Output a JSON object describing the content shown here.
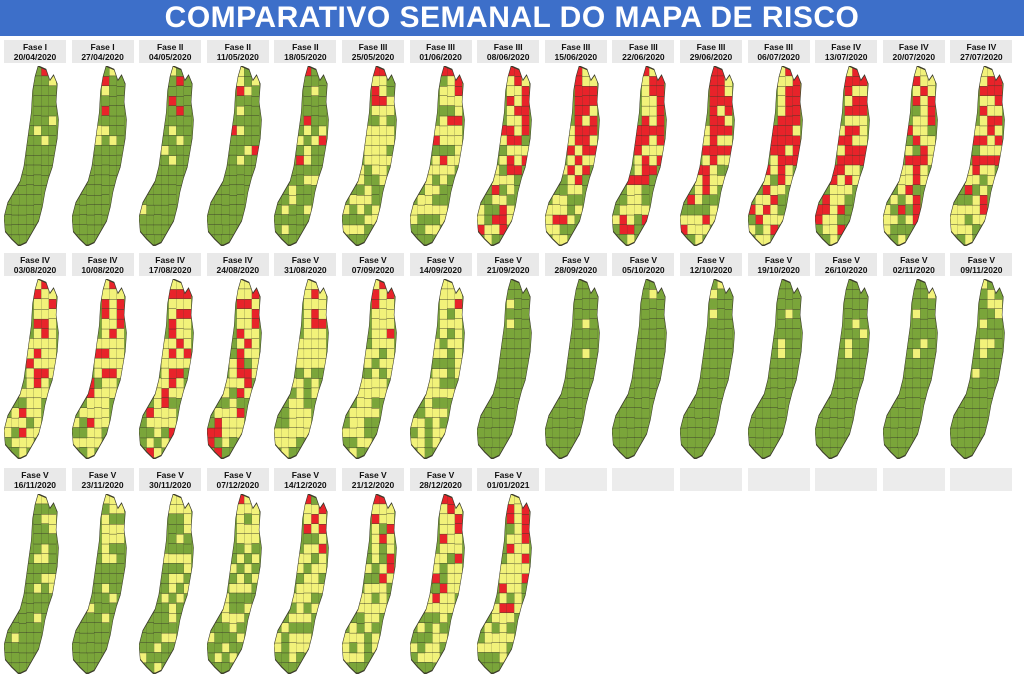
{
  "title": "COMPARATIVO SEMANAL DO MAPA DE RISCO",
  "colors": {
    "baixo": "#7aa53a",
    "moderado": "#f2f27a",
    "alto": "#e8232a",
    "border": "#3a3a2a",
    "header": "#3d6fc9"
  },
  "weeks": [
    {
      "phase": "Fase I",
      "date": "20/04/2020",
      "risk": {
        "baixo": 0.92,
        "moderado": 0.06,
        "alto": 0.02
      }
    },
    {
      "phase": "Fase I",
      "date": "27/04/2020",
      "risk": {
        "baixo": 0.88,
        "moderado": 0.09,
        "alto": 0.03
      }
    },
    {
      "phase": "Fase II",
      "date": "04/05/2020",
      "risk": {
        "baixo": 0.86,
        "moderado": 0.1,
        "alto": 0.04
      }
    },
    {
      "phase": "Fase II",
      "date": "11/05/2020",
      "risk": {
        "baixo": 0.82,
        "moderado": 0.13,
        "alto": 0.05
      }
    },
    {
      "phase": "Fase II",
      "date": "18/05/2020",
      "risk": {
        "baixo": 0.72,
        "moderado": 0.22,
        "alto": 0.06
      }
    },
    {
      "phase": "Fase III",
      "date": "25/05/2020",
      "risk": {
        "baixo": 0.3,
        "moderado": 0.62,
        "alto": 0.08
      }
    },
    {
      "phase": "Fase III",
      "date": "01/06/2020",
      "risk": {
        "baixo": 0.28,
        "moderado": 0.6,
        "alto": 0.12
      }
    },
    {
      "phase": "Fase III",
      "date": "08/06/2020",
      "risk": {
        "baixo": 0.18,
        "moderado": 0.45,
        "alto": 0.37
      }
    },
    {
      "phase": "Fase III",
      "date": "15/06/2020",
      "risk": {
        "baixo": 0.15,
        "moderado": 0.45,
        "alto": 0.4
      }
    },
    {
      "phase": "Fase III",
      "date": "22/06/2020",
      "risk": {
        "baixo": 0.16,
        "moderado": 0.4,
        "alto": 0.44
      }
    },
    {
      "phase": "Fase III",
      "date": "29/06/2020",
      "risk": {
        "baixo": 0.12,
        "moderado": 0.42,
        "alto": 0.46
      }
    },
    {
      "phase": "Fase III",
      "date": "06/07/2020",
      "risk": {
        "baixo": 0.08,
        "moderado": 0.4,
        "alto": 0.52
      }
    },
    {
      "phase": "Fase IV",
      "date": "13/07/2020",
      "risk": {
        "baixo": 0.1,
        "moderado": 0.42,
        "alto": 0.48
      }
    },
    {
      "phase": "Fase IV",
      "date": "20/07/2020",
      "risk": {
        "baixo": 0.2,
        "moderado": 0.5,
        "alto": 0.3
      }
    },
    {
      "phase": "Fase IV",
      "date": "27/07/2020",
      "risk": {
        "baixo": 0.12,
        "moderado": 0.55,
        "alto": 0.33
      }
    },
    {
      "phase": "Fase IV",
      "date": "03/08/2020",
      "risk": {
        "baixo": 0.1,
        "moderado": 0.7,
        "alto": 0.2
      }
    },
    {
      "phase": "Fase IV",
      "date": "10/08/2020",
      "risk": {
        "baixo": 0.1,
        "moderado": 0.68,
        "alto": 0.22
      }
    },
    {
      "phase": "Fase IV",
      "date": "17/08/2020",
      "risk": {
        "baixo": 0.12,
        "moderado": 0.6,
        "alto": 0.28
      }
    },
    {
      "phase": "Fase IV",
      "date": "24/08/2020",
      "risk": {
        "baixo": 0.15,
        "moderado": 0.55,
        "alto": 0.3
      }
    },
    {
      "phase": "Fase V",
      "date": "31/08/2020",
      "risk": {
        "baixo": 0.18,
        "moderado": 0.75,
        "alto": 0.07
      }
    },
    {
      "phase": "Fase V",
      "date": "07/09/2020",
      "risk": {
        "baixo": 0.22,
        "moderado": 0.7,
        "alto": 0.08
      }
    },
    {
      "phase": "Fase V",
      "date": "14/09/2020",
      "risk": {
        "baixo": 0.3,
        "moderado": 0.68,
        "alto": 0.02
      }
    },
    {
      "phase": "Fase V",
      "date": "21/09/2020",
      "risk": {
        "baixo": 0.97,
        "moderado": 0.03,
        "alto": 0.0
      }
    },
    {
      "phase": "Fase V",
      "date": "28/09/2020",
      "risk": {
        "baixo": 0.97,
        "moderado": 0.03,
        "alto": 0.0
      }
    },
    {
      "phase": "Fase V",
      "date": "05/10/2020",
      "risk": {
        "baixo": 0.98,
        "moderado": 0.02,
        "alto": 0.0
      }
    },
    {
      "phase": "Fase V",
      "date": "12/10/2020",
      "risk": {
        "baixo": 0.95,
        "moderado": 0.05,
        "alto": 0.0
      }
    },
    {
      "phase": "Fase V",
      "date": "19/10/2020",
      "risk": {
        "baixo": 0.96,
        "moderado": 0.04,
        "alto": 0.0
      }
    },
    {
      "phase": "Fase V",
      "date": "26/10/2020",
      "risk": {
        "baixo": 0.94,
        "moderado": 0.06,
        "alto": 0.0
      }
    },
    {
      "phase": "Fase V",
      "date": "02/11/2020",
      "risk": {
        "baixo": 0.93,
        "moderado": 0.07,
        "alto": 0.0
      }
    },
    {
      "phase": "Fase V",
      "date": "09/11/2020",
      "risk": {
        "baixo": 0.85,
        "moderado": 0.15,
        "alto": 0.0
      }
    },
    {
      "phase": "Fase V",
      "date": "16/11/2020",
      "risk": {
        "baixo": 0.78,
        "moderado": 0.22,
        "alto": 0.0
      }
    },
    {
      "phase": "Fase V",
      "date": "23/11/2020",
      "risk": {
        "baixo": 0.72,
        "moderado": 0.28,
        "alto": 0.0
      }
    },
    {
      "phase": "Fase V",
      "date": "30/11/2020",
      "risk": {
        "baixo": 0.6,
        "moderado": 0.4,
        "alto": 0.0
      }
    },
    {
      "phase": "Fase V",
      "date": "07/12/2020",
      "risk": {
        "baixo": 0.45,
        "moderado": 0.53,
        "alto": 0.02
      }
    },
    {
      "phase": "Fase V",
      "date": "14/12/2020",
      "risk": {
        "baixo": 0.3,
        "moderado": 0.6,
        "alto": 0.1
      }
    },
    {
      "phase": "Fase V",
      "date": "21/12/2020",
      "risk": {
        "baixo": 0.28,
        "moderado": 0.6,
        "alto": 0.12
      }
    },
    {
      "phase": "Fase V",
      "date": "28/12/2020",
      "risk": {
        "baixo": 0.25,
        "moderado": 0.6,
        "alto": 0.15
      }
    },
    {
      "phase": "Fase V",
      "date": "01/01/2021",
      "risk": {
        "baixo": 0.22,
        "moderado": 0.6,
        "alto": 0.18
      }
    }
  ]
}
